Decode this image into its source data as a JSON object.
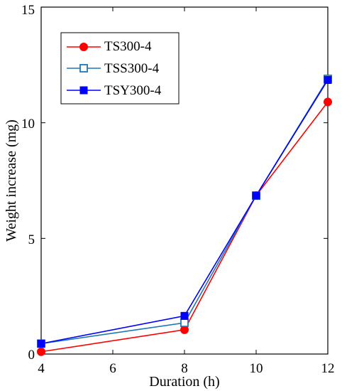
{
  "chart_data": {
    "type": "line",
    "x": [
      4,
      8,
      10,
      12
    ],
    "xlabel": "Duration (h)",
    "ylabel": "Weight increase (mg)",
    "xlim": [
      4,
      12
    ],
    "ylim": [
      0,
      15
    ],
    "xticks": [
      "4",
      "6",
      "8",
      "10",
      "12"
    ],
    "yticks": [
      "0",
      "5",
      "10",
      "15"
    ],
    "grid": false,
    "legend_position": "top-left",
    "series": [
      {
        "name": "TS300-4",
        "values": [
          0.1,
          1.05,
          6.85,
          10.9
        ],
        "color": "#ff0000",
        "marker": "filled-circle"
      },
      {
        "name": "TSS300-4",
        "values": [
          0.45,
          1.35,
          6.85,
          11.9
        ],
        "color": "#1f77b4",
        "marker": "open-square"
      },
      {
        "name": "TSY300-4",
        "values": [
          0.45,
          1.65,
          6.85,
          11.85
        ],
        "color": "#0000ff",
        "marker": "filled-square"
      }
    ]
  }
}
